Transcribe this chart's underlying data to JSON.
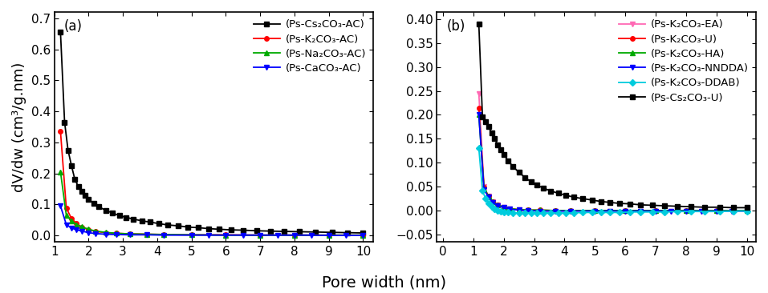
{
  "panel_a": {
    "title": "(a)",
    "ylabel": "dV/dw (cm³/g.nm)",
    "ylim": [
      -0.02,
      0.72
    ],
    "yticks": [
      0.0,
      0.1,
      0.2,
      0.3,
      0.4,
      0.5,
      0.6,
      0.7
    ],
    "xlim": [
      1.0,
      10.3
    ],
    "xticks": [
      1,
      2,
      3,
      4,
      5,
      6,
      7,
      8,
      9,
      10
    ],
    "series": [
      {
        "label": "(Ps-Cs₂CO₃-AC)",
        "color": "#000000",
        "marker": "s",
        "x": [
          1.18,
          1.3,
          1.4,
          1.5,
          1.6,
          1.7,
          1.8,
          1.9,
          2.0,
          2.15,
          2.3,
          2.5,
          2.7,
          2.9,
          3.1,
          3.3,
          3.55,
          3.8,
          4.05,
          4.3,
          4.6,
          4.9,
          5.2,
          5.5,
          5.8,
          6.15,
          6.5,
          6.9,
          7.3,
          7.7,
          8.15,
          8.6,
          9.1,
          9.55,
          10.0
        ],
        "y": [
          0.655,
          0.365,
          0.275,
          0.225,
          0.18,
          0.158,
          0.142,
          0.128,
          0.116,
          0.103,
          0.092,
          0.081,
          0.072,
          0.064,
          0.058,
          0.053,
          0.047,
          0.043,
          0.038,
          0.034,
          0.031,
          0.027,
          0.025,
          0.022,
          0.02,
          0.018,
          0.017,
          0.015,
          0.014,
          0.013,
          0.012,
          0.011,
          0.01,
          0.009,
          0.008
        ]
      },
      {
        "label": "(Ps-K₂CO₃-AC)",
        "color": "#ff0000",
        "marker": "o",
        "x": [
          1.18,
          1.35,
          1.5,
          1.65,
          1.8,
          2.0,
          2.2,
          2.5,
          2.8,
          3.2,
          3.7,
          4.2,
          5.0,
          6.0,
          7.0,
          8.0,
          9.0,
          10.0
        ],
        "y": [
          0.335,
          0.088,
          0.055,
          0.038,
          0.027,
          0.018,
          0.013,
          0.009,
          0.007,
          0.005,
          0.004,
          0.003,
          0.002,
          0.002,
          0.001,
          0.001,
          0.001,
          0.001
        ]
      },
      {
        "label": "(Ps-Na₂CO₃-AC)",
        "color": "#00aa00",
        "marker": "^",
        "x": [
          1.18,
          1.35,
          1.5,
          1.65,
          1.8,
          2.0,
          2.2,
          2.5,
          2.8,
          3.2,
          3.7,
          4.2,
          5.0,
          6.0,
          7.0,
          8.0,
          9.0,
          10.0
        ],
        "y": [
          0.205,
          0.065,
          0.047,
          0.035,
          0.028,
          0.02,
          0.014,
          0.01,
          0.007,
          0.005,
          0.004,
          0.003,
          0.002,
          0.001,
          0.001,
          0.001,
          0.001,
          0.001
        ]
      },
      {
        "label": "(Ps-CaCO₃-AC)",
        "color": "#0000ff",
        "marker": "v",
        "x": [
          1.18,
          1.35,
          1.5,
          1.65,
          1.8,
          2.0,
          2.2,
          2.5,
          2.8,
          3.2,
          3.7,
          4.2,
          5.0,
          5.5,
          6.0,
          6.5,
          7.0,
          7.5,
          8.0,
          8.5,
          9.0,
          9.5,
          10.0
        ],
        "y": [
          0.095,
          0.035,
          0.024,
          0.018,
          0.014,
          0.009,
          0.006,
          0.004,
          0.003,
          0.002,
          0.002,
          0.001,
          0.001,
          0.001,
          0.001,
          0.001,
          0.001,
          0.001,
          0.001,
          0.001,
          0.0,
          0.0,
          0.0
        ]
      }
    ]
  },
  "panel_b": {
    "title": "(b)",
    "ylim": [
      -0.065,
      0.415
    ],
    "yticks": [
      -0.05,
      0.0,
      0.05,
      0.1,
      0.15,
      0.2,
      0.25,
      0.3,
      0.35,
      0.4
    ],
    "xlim": [
      -0.2,
      10.3
    ],
    "xticks": [
      0,
      1,
      2,
      3,
      4,
      5,
      6,
      7,
      8,
      9,
      10
    ],
    "series": [
      {
        "label": "(Ps-K₂CO₃-EA)",
        "color": "#ff69b4",
        "marker": "v",
        "x": [
          1.18,
          1.35,
          1.5,
          1.65,
          1.8,
          2.0,
          2.2,
          2.5,
          2.8,
          3.2,
          3.7,
          4.2,
          5.0,
          5.5,
          6.0,
          6.5,
          7.0,
          7.5,
          8.0,
          8.5,
          9.0,
          9.5,
          10.0
        ],
        "y": [
          0.245,
          0.05,
          0.03,
          0.018,
          0.011,
          0.006,
          0.003,
          0.001,
          0.0,
          -0.001,
          -0.001,
          -0.001,
          -0.001,
          -0.001,
          -0.001,
          -0.001,
          -0.001,
          -0.001,
          -0.001,
          -0.001,
          -0.001,
          -0.001,
          -0.001
        ]
      },
      {
        "label": "(Ps-K₂CO₃-U)",
        "color": "#ff0000",
        "marker": "o",
        "x": [
          1.18,
          1.35,
          1.5,
          1.65,
          1.8,
          2.0,
          2.2,
          2.5,
          2.8,
          3.2,
          3.7,
          4.2,
          5.0,
          6.0,
          7.0,
          8.0,
          9.0,
          10.0
        ],
        "y": [
          0.215,
          0.048,
          0.03,
          0.018,
          0.012,
          0.007,
          0.004,
          0.002,
          0.001,
          0.001,
          0.0,
          0.0,
          0.0,
          0.0,
          0.0,
          0.0,
          0.0,
          0.0
        ]
      },
      {
        "label": "(Ps-K₂CO₃-HA)",
        "color": "#00aa00",
        "marker": "^",
        "x": [
          1.18,
          1.35,
          1.5,
          1.65,
          1.8,
          2.0,
          2.2,
          2.5,
          2.8,
          3.2,
          3.7,
          4.2,
          5.0,
          6.0,
          7.0,
          8.0,
          9.0,
          10.0
        ],
        "y": [
          0.2,
          0.046,
          0.03,
          0.018,
          0.012,
          0.007,
          0.004,
          0.002,
          0.001,
          0.001,
          0.0,
          0.0,
          0.0,
          0.0,
          0.0,
          0.0,
          0.0,
          0.0
        ]
      },
      {
        "label": "(Ps-K₂CO₃-NNDDA)",
        "color": "#0000ff",
        "marker": "v",
        "x": [
          1.18,
          1.35,
          1.5,
          1.65,
          1.8,
          2.0,
          2.2,
          2.5,
          2.8,
          3.2,
          3.7,
          4.2,
          5.0,
          5.5,
          6.0,
          6.5,
          7.0,
          7.5,
          8.0,
          8.5,
          9.0,
          9.5,
          10.0
        ],
        "y": [
          0.2,
          0.044,
          0.028,
          0.017,
          0.01,
          0.006,
          0.003,
          0.001,
          0.0,
          -0.001,
          -0.001,
          -0.001,
          -0.001,
          -0.001,
          -0.001,
          -0.001,
          -0.001,
          -0.001,
          -0.001,
          -0.001,
          -0.001,
          -0.001,
          -0.001
        ]
      },
      {
        "label": "(Ps-K₂CO₃-DDAB)",
        "color": "#00ccdd",
        "marker": "D",
        "x": [
          1.18,
          1.3,
          1.4,
          1.5,
          1.6,
          1.7,
          1.8,
          1.9,
          2.0,
          2.15,
          2.3,
          2.5,
          2.7,
          2.9,
          3.1,
          3.3,
          3.55,
          3.8,
          4.05,
          4.3,
          4.6,
          4.9,
          5.2,
          5.5,
          5.8,
          6.15,
          6.5,
          6.9,
          7.3,
          7.7,
          8.15,
          8.6,
          9.1,
          9.55,
          10.0
        ],
        "y": [
          0.13,
          0.042,
          0.025,
          0.015,
          0.008,
          0.003,
          0.0,
          -0.002,
          -0.003,
          -0.004,
          -0.005,
          -0.005,
          -0.005,
          -0.005,
          -0.005,
          -0.005,
          -0.005,
          -0.005,
          -0.005,
          -0.005,
          -0.004,
          -0.004,
          -0.004,
          -0.004,
          -0.004,
          -0.003,
          -0.003,
          -0.003,
          -0.003,
          -0.002,
          -0.002,
          -0.002,
          -0.002,
          -0.001,
          -0.001
        ]
      },
      {
        "label": "(Ps-Cs₂CO₃-U)",
        "color": "#000000",
        "marker": "s",
        "x": [
          1.18,
          1.3,
          1.4,
          1.5,
          1.6,
          1.7,
          1.8,
          1.9,
          2.0,
          2.15,
          2.3,
          2.5,
          2.7,
          2.9,
          3.1,
          3.3,
          3.55,
          3.8,
          4.05,
          4.3,
          4.6,
          4.9,
          5.2,
          5.5,
          5.8,
          6.15,
          6.5,
          6.9,
          7.3,
          7.7,
          8.15,
          8.6,
          9.1,
          9.55,
          10.0
        ],
        "y": [
          0.39,
          0.195,
          0.185,
          0.175,
          0.162,
          0.15,
          0.138,
          0.127,
          0.117,
          0.104,
          0.092,
          0.08,
          0.069,
          0.06,
          0.053,
          0.047,
          0.041,
          0.036,
          0.032,
          0.028,
          0.025,
          0.022,
          0.019,
          0.017,
          0.015,
          0.014,
          0.012,
          0.011,
          0.01,
          0.009,
          0.008,
          0.007,
          0.007,
          0.006,
          0.006
        ]
      }
    ]
  },
  "xlabel": "Pore width (nm)",
  "background_color": "#ffffff",
  "tick_fontsize": 11,
  "label_fontsize": 13,
  "legend_fontsize": 9.5
}
